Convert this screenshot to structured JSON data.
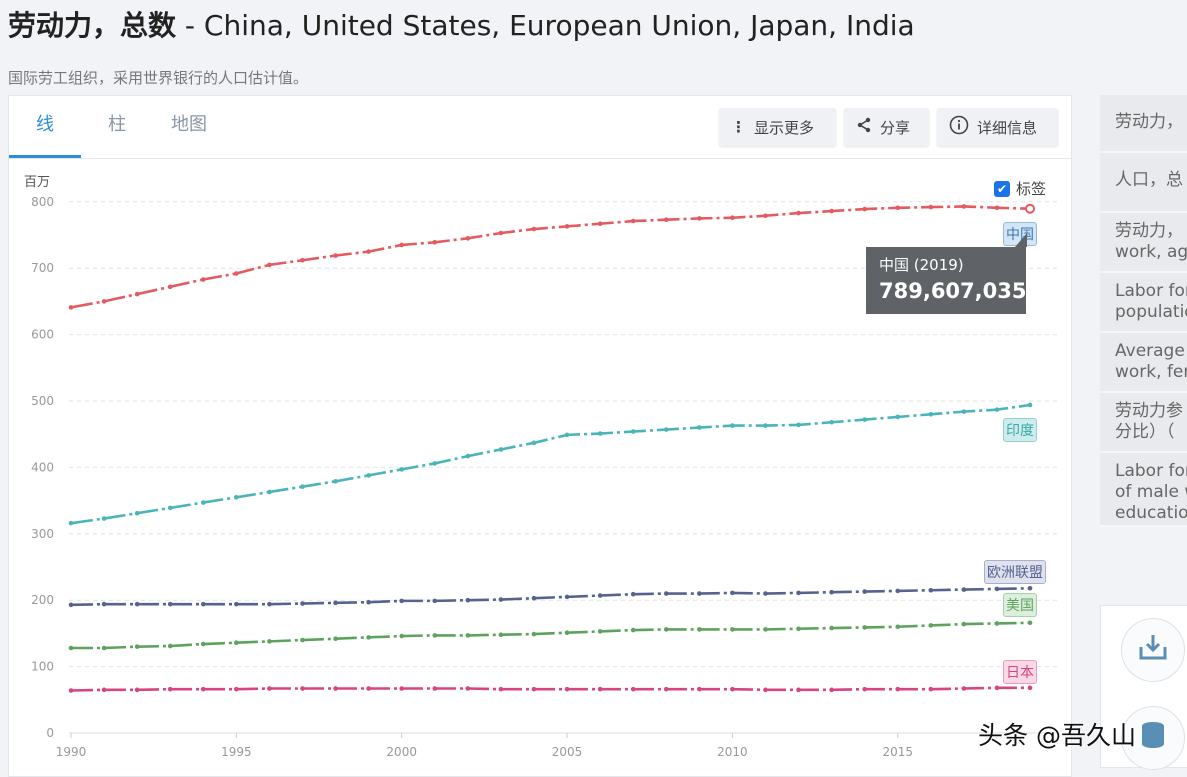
{
  "header": {
    "title_cn": "劳动力，总数",
    "title_en": " - China, United States, European Union, Japan, India",
    "subtitle": "国际劳工组织，采用世界银行的人口估计值。"
  },
  "tabs": [
    {
      "label": "线",
      "active": true
    },
    {
      "label": "柱"
    },
    {
      "label": "地图"
    }
  ],
  "toolbar": {
    "more": "显示更多",
    "share": "分享",
    "details": "详细信息"
  },
  "labels_toggle": {
    "label": "标签",
    "checked": true
  },
  "tooltip": {
    "title": "中国 (2019)",
    "value": "789,607,035"
  },
  "sidebar": {
    "items": [
      "劳动力，",
      "人口，总",
      "劳动力，\nwork, ag",
      "Labor for\npopulatio",
      "Average w\nwork, fen",
      "劳动力参\n分比）（",
      "Labor for\nof male w\neducatio"
    ]
  },
  "watermark": "头条 @吾久山",
  "chart_data": {
    "type": "line",
    "ylabel": "百万",
    "ylim": [
      0,
      800
    ],
    "yticks": [
      0,
      100,
      200,
      300,
      400,
      500,
      600,
      700,
      800
    ],
    "xticks": [
      1990,
      1995,
      2000,
      2005,
      2010,
      2015
    ],
    "grid": true,
    "x": [
      1990,
      1991,
      1992,
      1993,
      1994,
      1995,
      1996,
      1997,
      1998,
      1999,
      2000,
      2001,
      2002,
      2003,
      2004,
      2005,
      2006,
      2007,
      2008,
      2009,
      2010,
      2011,
      2012,
      2013,
      2014,
      2015,
      2016,
      2017,
      2018,
      2019
    ],
    "series": [
      {
        "name": "中国",
        "color": "#e35a60",
        "tag_bg": "#d4e6f5",
        "tag_fg": "#3a78b5",
        "values": [
          641,
          650,
          661,
          672,
          683,
          692,
          705,
          712,
          719,
          725,
          735,
          739,
          745,
          753,
          759,
          763,
          767,
          771,
          773,
          775,
          776,
          779,
          783,
          786,
          789,
          791,
          792,
          793,
          791,
          789.6
        ]
      },
      {
        "name": "印度",
        "color": "#4ab5b8",
        "tag_bg": "#cdeceb",
        "tag_fg": "#3aa7aa",
        "values": [
          316,
          323,
          331,
          339,
          347,
          355,
          363,
          371,
          379,
          388,
          397,
          406,
          417,
          427,
          437,
          449,
          451,
          454,
          457,
          460,
          463,
          463,
          464,
          468,
          472,
          476,
          480,
          484,
          487,
          494
        ]
      },
      {
        "name": "欧洲联盟",
        "color": "#56638f",
        "tag_bg": "#dfe2ee",
        "tag_fg": "#56638f",
        "values": [
          193,
          194,
          194,
          194,
          194,
          194,
          194,
          195,
          196,
          197,
          199,
          199,
          200,
          201,
          203,
          205,
          207,
          209,
          210,
          210,
          211,
          210,
          211,
          212,
          213,
          214,
          215,
          216,
          217,
          218
        ]
      },
      {
        "name": "美国",
        "color": "#5ea25e",
        "tag_bg": "#dcefdc",
        "tag_fg": "#5ea25e",
        "values": [
          128,
          128,
          130,
          131,
          134,
          136,
          138,
          140,
          142,
          144,
          146,
          147,
          147,
          148,
          149,
          151,
          153,
          155,
          156,
          156,
          156,
          156,
          157,
          158,
          159,
          160,
          162,
          164,
          165,
          166
        ]
      },
      {
        "name": "日本",
        "color": "#d8447f",
        "tag_bg": "#f8d9e5",
        "tag_fg": "#d8447f",
        "values": [
          64,
          65,
          65,
          66,
          66,
          66,
          67,
          67,
          67,
          67,
          67,
          67,
          67,
          66,
          66,
          66,
          66,
          66,
          66,
          66,
          66,
          65,
          65,
          65,
          66,
          66,
          66,
          67,
          68,
          68
        ]
      }
    ]
  }
}
